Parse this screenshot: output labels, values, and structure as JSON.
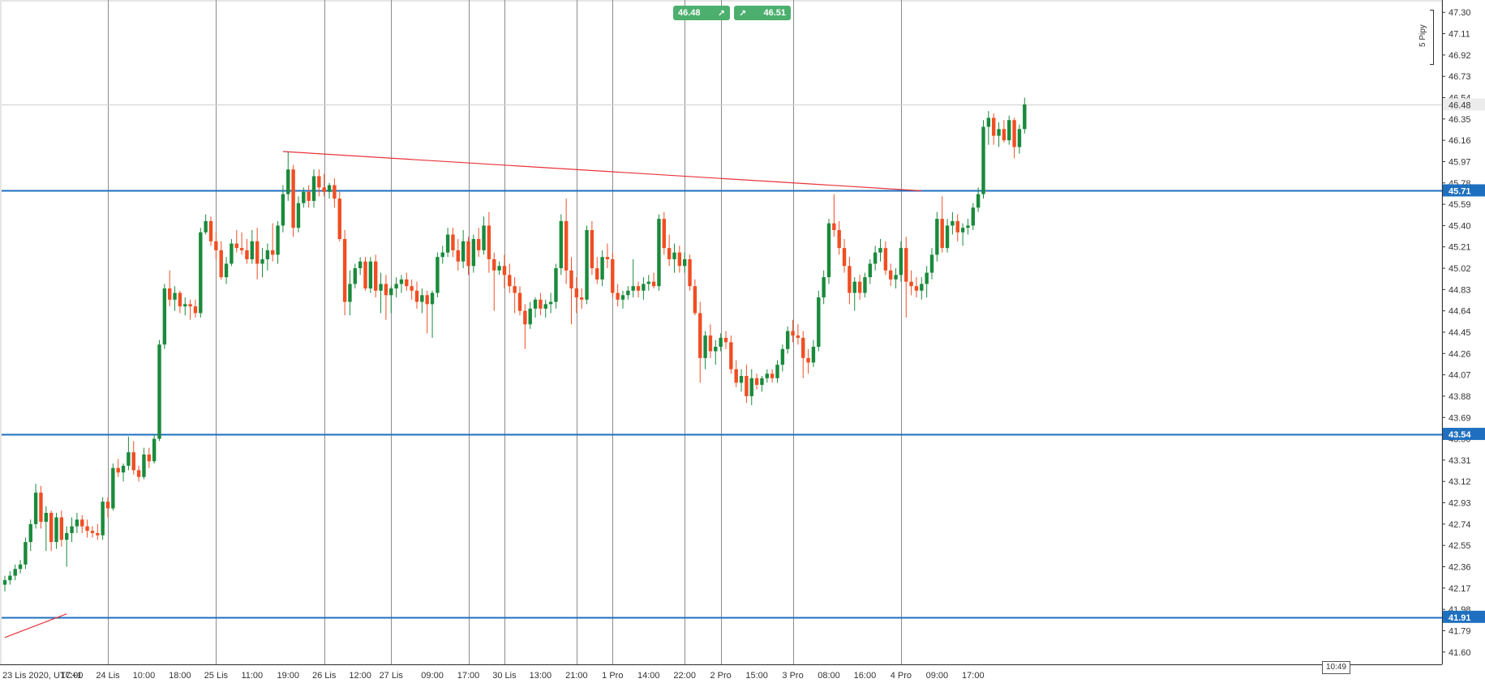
{
  "price_buttons": {
    "bid": {
      "value": "46.48",
      "arrow": "↗"
    },
    "ask": {
      "value": "46.51",
      "arrow": "↗"
    }
  },
  "pips_label": "5 Pipy",
  "time_badge": "10:49",
  "colors": {
    "bull": "#1a8a3c",
    "bear": "#f04e23",
    "level": "#1e6fbf",
    "trendline": "#e8333a",
    "grid": "#8c8c8c",
    "button": "#4caf6e"
  },
  "chart_data": {
    "type": "candlestick",
    "ylim": [
      41.49,
      47.41
    ],
    "y_ticks": [
      "47.30",
      "47.11",
      "46.92",
      "46.73",
      "46.54",
      "46.35",
      "46.16",
      "45.97",
      "45.78",
      "45.59",
      "45.40",
      "45.21",
      "45.02",
      "44.83",
      "44.64",
      "44.45",
      "44.26",
      "44.07",
      "43.88",
      "43.69",
      "43.50",
      "43.31",
      "43.12",
      "42.93",
      "42.74",
      "42.55",
      "42.36",
      "42.17",
      "41.98",
      "41.79",
      "41.60"
    ],
    "x_ticks": [
      {
        "label": "23 Lis 2020, UTC+1",
        "i": 0
      },
      {
        "label": "17:00",
        "i": 13
      },
      {
        "label": "24 Lis",
        "i": 20
      },
      {
        "label": "10:00",
        "i": 27
      },
      {
        "label": "18:00",
        "i": 34
      },
      {
        "label": "25 Lis",
        "i": 41
      },
      {
        "label": "11:00",
        "i": 48
      },
      {
        "label": "19:00",
        "i": 55
      },
      {
        "label": "26 Lis",
        "i": 62
      },
      {
        "label": "12:00",
        "i": 69
      },
      {
        "label": "27 Lis",
        "i": 75
      },
      {
        "label": "09:00",
        "i": 83
      },
      {
        "label": "17:00",
        "i": 90
      },
      {
        "label": "30 Lis",
        "i": 97
      },
      {
        "label": "13:00",
        "i": 104
      },
      {
        "label": "21:00",
        "i": 111
      },
      {
        "label": "1 Pro",
        "i": 118
      },
      {
        "label": "14:00",
        "i": 125
      },
      {
        "label": "22:00",
        "i": 132
      },
      {
        "label": "2 Pro",
        "i": 139
      },
      {
        "label": "15:00",
        "i": 146
      },
      {
        "label": "3 Pro",
        "i": 153
      },
      {
        "label": "08:00",
        "i": 160
      },
      {
        "label": "16:00",
        "i": 167
      },
      {
        "label": "4 Pro",
        "i": 174
      },
      {
        "label": "09:00",
        "i": 181
      },
      {
        "label": "17:00",
        "i": 188
      }
    ],
    "day_separators": [
      20,
      41,
      62,
      75,
      97,
      118,
      139,
      153,
      174
    ],
    "extra_grid": [
      90,
      111,
      132
    ],
    "levels": [
      {
        "value": 45.71,
        "label": "45.71"
      },
      {
        "value": 43.54,
        "label": "43.54"
      },
      {
        "value": 41.91,
        "label": "41.91"
      }
    ],
    "current_price": {
      "value": 46.48,
      "label": "46.48"
    },
    "trendlines": [
      {
        "from": {
          "i": 54,
          "price": 46.06
        },
        "to": {
          "i": 178,
          "price": 45.71
        }
      },
      {
        "from": {
          "i": 0,
          "price": 41.73
        },
        "to": {
          "i": 12,
          "price": 41.94
        }
      }
    ],
    "candles": [
      [
        42.2,
        42.28,
        42.14,
        42.24
      ],
      [
        42.24,
        42.32,
        42.2,
        42.28
      ],
      [
        42.28,
        42.38,
        42.24,
        42.34
      ],
      [
        42.34,
        42.42,
        42.3,
        42.38
      ],
      [
        42.38,
        42.62,
        42.34,
        42.58
      ],
      [
        42.58,
        42.78,
        42.5,
        42.74
      ],
      [
        42.74,
        43.1,
        42.7,
        43.02
      ],
      [
        43.02,
        43.08,
        42.7,
        42.76
      ],
      [
        42.76,
        42.9,
        42.5,
        42.84
      ],
      [
        42.84,
        42.86,
        42.5,
        42.58
      ],
      [
        42.58,
        42.84,
        42.52,
        42.8
      ],
      [
        42.8,
        42.86,
        42.54,
        42.6
      ],
      [
        42.6,
        42.72,
        42.36,
        42.66
      ],
      [
        42.66,
        42.8,
        42.58,
        42.72
      ],
      [
        42.72,
        42.84,
        42.66,
        42.78
      ],
      [
        42.78,
        42.82,
        42.66,
        42.72
      ],
      [
        42.72,
        42.78,
        42.62,
        42.68
      ],
      [
        42.68,
        42.72,
        42.62,
        42.66
      ],
      [
        42.66,
        42.74,
        42.6,
        42.64
      ],
      [
        42.64,
        42.98,
        42.6,
        42.94
      ],
      [
        42.94,
        42.98,
        42.8,
        42.88
      ],
      [
        42.88,
        43.28,
        42.86,
        43.24
      ],
      [
        43.24,
        43.32,
        43.16,
        43.2
      ],
      [
        43.2,
        43.28,
        43.12,
        43.26
      ],
      [
        43.26,
        43.52,
        43.22,
        43.38
      ],
      [
        43.38,
        43.48,
        43.18,
        43.22
      ],
      [
        43.22,
        43.26,
        43.12,
        43.16
      ],
      [
        43.16,
        43.42,
        43.14,
        43.36
      ],
      [
        43.36,
        43.42,
        43.24,
        43.3
      ],
      [
        43.3,
        43.54,
        43.28,
        43.5
      ],
      [
        43.5,
        44.38,
        43.48,
        44.34
      ],
      [
        44.34,
        44.88,
        44.3,
        44.84
      ],
      [
        44.84,
        45.0,
        44.68,
        44.74
      ],
      [
        44.74,
        44.86,
        44.64,
        44.8
      ],
      [
        44.8,
        44.82,
        44.62,
        44.68
      ],
      [
        44.68,
        44.76,
        44.6,
        44.7
      ],
      [
        44.7,
        44.74,
        44.56,
        44.68
      ],
      [
        44.68,
        44.74,
        44.58,
        44.62
      ],
      [
        44.62,
        45.38,
        44.58,
        45.34
      ],
      [
        45.34,
        45.5,
        45.32,
        45.44
      ],
      [
        45.44,
        45.48,
        45.22,
        45.26
      ],
      [
        45.26,
        45.34,
        45.1,
        45.18
      ],
      [
        45.18,
        45.26,
        44.92,
        44.94
      ],
      [
        44.94,
        45.12,
        44.88,
        45.06
      ],
      [
        45.06,
        45.28,
        45.04,
        45.24
      ],
      [
        45.24,
        45.36,
        45.16,
        45.2
      ],
      [
        45.2,
        45.34,
        45.14,
        45.18
      ],
      [
        45.18,
        45.28,
        45.06,
        45.1
      ],
      [
        45.1,
        45.36,
        45.06,
        45.26
      ],
      [
        45.26,
        45.38,
        44.92,
        45.06
      ],
      [
        45.06,
        45.2,
        44.94,
        45.1
      ],
      [
        45.1,
        45.24,
        45.0,
        45.18
      ],
      [
        45.18,
        45.42,
        45.08,
        45.14
      ],
      [
        45.14,
        45.44,
        45.06,
        45.4
      ],
      [
        45.4,
        45.76,
        45.34,
        45.68
      ],
      [
        45.68,
        46.06,
        45.62,
        45.9
      ],
      [
        45.9,
        45.94,
        45.3,
        45.38
      ],
      [
        45.38,
        45.66,
        45.34,
        45.6
      ],
      [
        45.6,
        45.74,
        45.56,
        45.7
      ],
      [
        45.7,
        45.76,
        45.56,
        45.62
      ],
      [
        45.62,
        45.9,
        45.56,
        45.84
      ],
      [
        45.84,
        45.9,
        45.66,
        45.74
      ],
      [
        45.74,
        45.86,
        45.66,
        45.7
      ],
      [
        45.7,
        45.78,
        45.64,
        45.76
      ],
      [
        45.76,
        45.82,
        45.56,
        45.64
      ],
      [
        45.64,
        45.7,
        45.26,
        45.28
      ],
      [
        45.28,
        45.36,
        44.6,
        44.72
      ],
      [
        44.72,
        45.0,
        44.6,
        44.88
      ],
      [
        44.88,
        45.06,
        44.84,
        45.02
      ],
      [
        45.02,
        45.12,
        44.96,
        45.08
      ],
      [
        45.08,
        45.12,
        44.82,
        44.84
      ],
      [
        44.84,
        45.12,
        44.8,
        45.08
      ],
      [
        45.08,
        45.14,
        44.76,
        44.82
      ],
      [
        44.82,
        44.98,
        44.62,
        44.88
      ],
      [
        44.88,
        44.96,
        44.56,
        44.78
      ],
      [
        44.78,
        44.86,
        44.62,
        44.84
      ],
      [
        44.84,
        44.94,
        44.76,
        44.88
      ],
      [
        44.88,
        44.96,
        44.8,
        44.92
      ],
      [
        44.92,
        44.98,
        44.82,
        44.86
      ],
      [
        44.86,
        44.92,
        44.74,
        44.82
      ],
      [
        44.82,
        44.9,
        44.66,
        44.72
      ],
      [
        44.72,
        44.84,
        44.62,
        44.78
      ],
      [
        44.78,
        44.82,
        44.44,
        44.7
      ],
      [
        44.7,
        44.82,
        44.4,
        44.8
      ],
      [
        44.8,
        45.16,
        44.76,
        45.12
      ],
      [
        45.12,
        45.22,
        45.06,
        45.16
      ],
      [
        45.16,
        45.38,
        45.12,
        45.32
      ],
      [
        45.32,
        45.38,
        45.12,
        45.18
      ],
      [
        45.18,
        45.28,
        45.0,
        45.08
      ],
      [
        45.08,
        45.36,
        45.02,
        45.26
      ],
      [
        45.26,
        45.3,
        44.96,
        45.04
      ],
      [
        45.04,
        45.32,
        44.98,
        45.28
      ],
      [
        45.28,
        45.38,
        45.12,
        45.18
      ],
      [
        45.18,
        45.48,
        45.14,
        45.4
      ],
      [
        45.4,
        45.52,
        44.98,
        45.1
      ],
      [
        45.1,
        45.16,
        44.64,
        45.0
      ],
      [
        45.0,
        45.08,
        44.96,
        45.04
      ],
      [
        45.04,
        45.14,
        44.84,
        44.96
      ],
      [
        44.96,
        45.06,
        44.8,
        44.86
      ],
      [
        44.86,
        44.94,
        44.62,
        44.8
      ],
      [
        44.8,
        44.86,
        44.6,
        44.64
      ],
      [
        44.64,
        44.7,
        44.3,
        44.52
      ],
      [
        44.52,
        44.72,
        44.48,
        44.66
      ],
      [
        44.66,
        44.76,
        44.58,
        44.74
      ],
      [
        44.74,
        44.8,
        44.6,
        44.66
      ],
      [
        44.66,
        44.74,
        44.58,
        44.7
      ],
      [
        44.7,
        44.8,
        44.62,
        44.72
      ],
      [
        44.72,
        45.06,
        44.66,
        45.02
      ],
      [
        45.02,
        45.5,
        44.96,
        45.44
      ],
      [
        45.44,
        45.64,
        44.88,
        45.0
      ],
      [
        45.0,
        45.12,
        44.52,
        44.84
      ],
      [
        44.84,
        44.94,
        44.62,
        44.76
      ],
      [
        44.76,
        44.84,
        44.66,
        44.74
      ],
      [
        44.74,
        45.4,
        44.7,
        45.36
      ],
      [
        45.36,
        45.44,
        44.96,
        45.02
      ],
      [
        45.02,
        45.12,
        44.88,
        44.92
      ],
      [
        44.92,
        45.18,
        44.86,
        45.12
      ],
      [
        45.12,
        45.24,
        45.02,
        45.1
      ],
      [
        45.1,
        45.16,
        44.76,
        44.8
      ],
      [
        44.8,
        44.88,
        44.68,
        44.74
      ],
      [
        44.74,
        44.82,
        44.66,
        44.78
      ],
      [
        44.78,
        44.86,
        44.74,
        44.82
      ],
      [
        44.82,
        45.1,
        44.76,
        44.86
      ],
      [
        44.86,
        44.9,
        44.76,
        44.82
      ],
      [
        44.82,
        44.94,
        44.74,
        44.88
      ],
      [
        44.88,
        44.96,
        44.82,
        44.9
      ],
      [
        44.9,
        44.98,
        44.84,
        44.86
      ],
      [
        44.86,
        45.5,
        44.82,
        45.46
      ],
      [
        45.46,
        45.52,
        45.14,
        45.2
      ],
      [
        45.2,
        45.32,
        45.04,
        45.1
      ],
      [
        45.1,
        45.24,
        44.98,
        45.16
      ],
      [
        45.16,
        45.22,
        44.98,
        45.04
      ],
      [
        45.04,
        45.16,
        44.98,
        45.1
      ],
      [
        45.1,
        45.14,
        44.82,
        44.86
      ],
      [
        44.86,
        44.92,
        44.6,
        44.62
      ],
      [
        44.62,
        44.72,
        44.0,
        44.22
      ],
      [
        44.22,
        44.46,
        44.12,
        44.42
      ],
      [
        44.42,
        44.52,
        44.22,
        44.28
      ],
      [
        44.28,
        44.38,
        44.16,
        44.32
      ],
      [
        44.32,
        44.44,
        44.28,
        44.4
      ],
      [
        44.4,
        44.46,
        44.3,
        44.36
      ],
      [
        44.36,
        44.42,
        44.08,
        44.12
      ],
      [
        44.12,
        44.2,
        43.96,
        44.0
      ],
      [
        44.0,
        44.12,
        43.92,
        44.06
      ],
      [
        44.06,
        44.16,
        43.82,
        43.88
      ],
      [
        43.88,
        44.12,
        43.8,
        44.04
      ],
      [
        44.04,
        44.08,
        43.94,
        43.98
      ],
      [
        43.98,
        44.06,
        43.92,
        44.04
      ],
      [
        44.04,
        44.12,
        44.0,
        44.08
      ],
      [
        44.08,
        44.12,
        44.0,
        44.04
      ],
      [
        44.04,
        44.2,
        44.0,
        44.16
      ],
      [
        44.16,
        44.34,
        44.1,
        44.3
      ],
      [
        44.3,
        44.5,
        44.26,
        44.46
      ],
      [
        44.46,
        44.56,
        44.36,
        44.42
      ],
      [
        44.42,
        44.52,
        44.34,
        44.4
      ],
      [
        44.4,
        44.46,
        44.04,
        44.22
      ],
      [
        44.22,
        44.3,
        44.08,
        44.18
      ],
      [
        44.18,
        44.38,
        44.14,
        44.32
      ],
      [
        44.32,
        44.82,
        44.28,
        44.76
      ],
      [
        44.76,
        45.0,
        44.7,
        44.94
      ],
      [
        44.94,
        45.46,
        44.88,
        45.42
      ],
      [
        45.42,
        45.68,
        45.3,
        45.36
      ],
      [
        45.36,
        45.44,
        45.14,
        45.2
      ],
      [
        45.2,
        45.28,
        44.98,
        45.04
      ],
      [
        45.04,
        45.12,
        44.7,
        44.8
      ],
      [
        44.8,
        44.94,
        44.64,
        44.9
      ],
      [
        44.9,
        44.96,
        44.74,
        44.8
      ],
      [
        44.8,
        44.98,
        44.76,
        44.94
      ],
      [
        44.94,
        45.1,
        44.88,
        45.06
      ],
      [
        45.06,
        45.22,
        45.0,
        45.16
      ],
      [
        45.16,
        45.28,
        45.08,
        45.2
      ],
      [
        45.2,
        45.26,
        44.96,
        45.0
      ],
      [
        45.0,
        45.06,
        44.86,
        44.92
      ],
      [
        44.92,
        45.02,
        44.84,
        44.96
      ],
      [
        44.96,
        45.26,
        44.9,
        45.2
      ],
      [
        45.2,
        45.3,
        44.58,
        44.9
      ],
      [
        44.9,
        45.0,
        44.78,
        44.86
      ],
      [
        44.86,
        44.94,
        44.76,
        44.82
      ],
      [
        44.82,
        44.94,
        44.74,
        44.88
      ],
      [
        44.88,
        45.04,
        44.76,
        44.98
      ],
      [
        44.98,
        45.2,
        44.92,
        45.14
      ],
      [
        45.14,
        45.52,
        45.08,
        45.46
      ],
      [
        45.46,
        45.66,
        45.16,
        45.2
      ],
      [
        45.2,
        45.46,
        45.16,
        45.4
      ],
      [
        45.4,
        45.52,
        45.32,
        45.44
      ],
      [
        45.44,
        45.5,
        45.26,
        45.34
      ],
      [
        45.34,
        45.42,
        45.22,
        45.38
      ],
      [
        45.38,
        45.46,
        45.32,
        45.4
      ],
      [
        45.4,
        45.6,
        45.36,
        45.56
      ],
      [
        45.56,
        45.74,
        45.52,
        45.68
      ],
      [
        45.68,
        46.34,
        45.64,
        46.28
      ],
      [
        46.28,
        46.42,
        46.12,
        46.36
      ],
      [
        46.36,
        46.4,
        46.12,
        46.2
      ],
      [
        46.2,
        46.32,
        46.1,
        46.26
      ],
      [
        46.26,
        46.34,
        46.14,
        46.16
      ],
      [
        46.16,
        46.38,
        46.12,
        46.34
      ],
      [
        46.34,
        46.36,
        46.0,
        46.1
      ],
      [
        46.1,
        46.3,
        46.04,
        46.26
      ],
      [
        46.26,
        46.54,
        46.22,
        46.48
      ]
    ]
  }
}
